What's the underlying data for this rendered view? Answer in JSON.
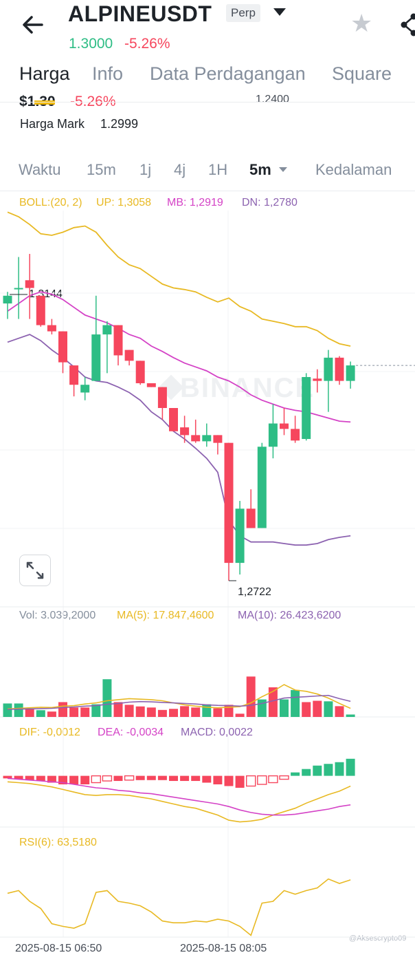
{
  "header": {
    "symbol": "ALPINEUSDT",
    "badge": "Perp",
    "last_price": "1.3000",
    "change_pct": "-5.26%",
    "tabs": [
      "Harga",
      "Info",
      "Data Perdagangan",
      "Square"
    ],
    "active_tab": "Harga"
  },
  "summary": {
    "price_partial": "$1.30",
    "change_partial": "-5.26%",
    "right_partial": "1.2400",
    "mark_label": "Harga Mark",
    "mark_value": "1.2999"
  },
  "intervals": [
    "Waktu",
    "15m",
    "1j",
    "4j",
    "1H",
    "5m",
    "Kedalaman"
  ],
  "active_interval": "5m",
  "indicators": {
    "boll": {
      "name": "BOLL:(20, 2)",
      "up": "UP: 1,3058",
      "mb": "MB: 1,2919",
      "dn": "DN: 1,2780"
    },
    "vol": {
      "vol": "Vol: 3.039,2000",
      "ma5": "MA(5): 17.847,4600",
      "ma10": "MA(10): 26.423,6200"
    },
    "macd": {
      "dif": "DIF: -0,0012",
      "dea": "DEA: -0,0034",
      "macd": "MACD: 0,0022"
    },
    "rsi": {
      "label": "RSI(6): 63,5180"
    }
  },
  "annotations": {
    "high": "1,3144",
    "low": "1,2722"
  },
  "time_labels": [
    "2025-08-15 06:50",
    "2025-08-15 08:05"
  ],
  "watermark": "BINANCE",
  "credit": "@Aksescrypto09",
  "colors": {
    "up": "#2ebd85",
    "down": "#f6465d",
    "boll_up": "#e8b923",
    "boll_mb": "#d442c6",
    "boll_dn": "#8c62b0",
    "ma5": "#e8b923",
    "ma10": "#8c62b0"
  },
  "icons": [
    "back-arrow-icon",
    "dropdown-caret-icon",
    "star-icon",
    "share-icon",
    "expand-icon"
  ],
  "chart_data": {
    "type": "candlestick",
    "price_range": [
      1.269,
      1.32
    ],
    "candles": [
      {
        "o": 1.308,
        "h": 1.3095,
        "l": 1.306,
        "c": 1.309
      },
      {
        "o": 1.31,
        "h": 1.314,
        "l": 1.306,
        "c": 1.31
      },
      {
        "o": 1.311,
        "h": 1.3144,
        "l": 1.306,
        "c": 1.31
      },
      {
        "o": 1.309,
        "h": 1.309,
        "l": 1.305,
        "c": 1.3052
      },
      {
        "o": 1.3052,
        "h": 1.306,
        "l": 1.304,
        "c": 1.3044
      },
      {
        "o": 1.3044,
        "h": 1.3044,
        "l": 1.299,
        "c": 1.3004
      },
      {
        "o": 1.3,
        "h": 1.3,
        "l": 1.296,
        "c": 1.2975
      },
      {
        "o": 1.2965,
        "h": 1.2985,
        "l": 1.2955,
        "c": 1.2975
      },
      {
        "o": 1.298,
        "h": 1.309,
        "l": 1.298,
        "c": 1.304
      },
      {
        "o": 1.304,
        "h": 1.3057,
        "l": 1.299,
        "c": 1.3052
      },
      {
        "o": 1.3052,
        "h": 1.3052,
        "l": 1.3,
        "c": 1.3013
      },
      {
        "o": 1.302,
        "h": 1.302,
        "l": 1.3,
        "c": 1.3006
      },
      {
        "o": 1.3006,
        "h": 1.3006,
        "l": 1.2975,
        "c": 1.2977
      },
      {
        "o": 1.2977,
        "h": 1.2977,
        "l": 1.2972,
        "c": 1.2972
      },
      {
        "o": 1.2972,
        "h": 1.2972,
        "l": 1.293,
        "c": 1.2945
      },
      {
        "o": 1.2945,
        "h": 1.2945,
        "l": 1.2915,
        "c": 1.2915
      },
      {
        "o": 1.292,
        "h": 1.2935,
        "l": 1.29,
        "c": 1.291
      },
      {
        "o": 1.291,
        "h": 1.293,
        "l": 1.29,
        "c": 1.2902
      },
      {
        "o": 1.2902,
        "h": 1.2925,
        "l": 1.2895,
        "c": 1.291
      },
      {
        "o": 1.291,
        "h": 1.291,
        "l": 1.2885,
        "c": 1.29
      },
      {
        "o": 1.29,
        "h": 1.29,
        "l": 1.2722,
        "c": 1.2745
      },
      {
        "o": 1.2745,
        "h": 1.2825,
        "l": 1.273,
        "c": 1.2815
      },
      {
        "o": 1.2815,
        "h": 1.284,
        "l": 1.279,
        "c": 1.279
      },
      {
        "o": 1.279,
        "h": 1.29,
        "l": 1.279,
        "c": 1.2895
      },
      {
        "o": 1.2895,
        "h": 1.295,
        "l": 1.288,
        "c": 1.2925
      },
      {
        "o": 1.2925,
        "h": 1.2945,
        "l": 1.291,
        "c": 1.2918
      },
      {
        "o": 1.2918,
        "h": 1.2935,
        "l": 1.29,
        "c": 1.2903
      },
      {
        "o": 1.2905,
        "h": 1.299,
        "l": 1.2903,
        "c": 1.2985
      },
      {
        "o": 1.2983,
        "h": 1.2995,
        "l": 1.2965,
        "c": 1.298
      },
      {
        "o": 1.298,
        "h": 1.302,
        "l": 1.294,
        "c": 1.301
      },
      {
        "o": 1.301,
        "h": 1.3012,
        "l": 1.2975,
        "c": 1.298
      },
      {
        "o": 1.298,
        "h": 1.3005,
        "l": 1.297,
        "c": 1.3
      }
    ],
    "boll_up": [
      1.3198,
      1.3192,
      1.3182,
      1.317,
      1.3168,
      1.3172,
      1.3178,
      1.318,
      1.3172,
      1.3155,
      1.314,
      1.313,
      1.3125,
      1.3115,
      1.3105,
      1.31,
      1.3098,
      1.3095,
      1.3088,
      1.3082,
      1.3087,
      1.3076,
      1.307,
      1.306,
      1.3057,
      1.3054,
      1.305,
      1.305,
      1.3045,
      1.3035,
      1.3028,
      1.3025
    ],
    "boll_mb": [
      1.307,
      1.308,
      1.309,
      1.3095,
      1.3092,
      1.3085,
      1.3075,
      1.3065,
      1.306,
      1.3055,
      1.3048,
      1.304,
      1.3035,
      1.3025,
      1.3018,
      1.301,
      1.3003,
      1.2998,
      1.2993,
      1.2985,
      1.298,
      1.2972,
      1.2962,
      1.2955,
      1.295,
      1.2945,
      1.2942,
      1.294,
      1.2936,
      1.2932,
      1.2928,
      1.2927
    ],
    "boll_dn": [
      1.303,
      1.3035,
      1.304,
      1.3032,
      1.302,
      1.301,
      1.2998,
      1.2985,
      1.298,
      1.2978,
      1.2972,
      1.2965,
      1.2955,
      1.294,
      1.293,
      1.2915,
      1.2905,
      1.2893,
      1.288,
      1.2862,
      1.28,
      1.278,
      1.2772,
      1.2772,
      1.2772,
      1.277,
      1.2768,
      1.2768,
      1.277,
      1.2775,
      1.2778,
      1.278
    ],
    "volume": {
      "range": [
        0,
        35000
      ],
      "values": [
        5000,
        5000,
        3000,
        2500,
        2000,
        5500,
        3500,
        3500,
        4700,
        14000,
        5500,
        4500,
        3900,
        3500,
        2600,
        3000,
        4000,
        3500,
        4700,
        3200,
        4500,
        1200,
        15000,
        6500,
        11000,
        6500,
        10000,
        5500,
        6000,
        5800,
        4000,
        900
      ],
      "up": [
        true,
        true,
        false,
        true,
        false,
        false,
        false,
        false,
        true,
        true,
        false,
        false,
        false,
        false,
        false,
        false,
        false,
        false,
        true,
        false,
        false,
        false,
        false,
        true,
        false,
        true,
        true,
        false,
        false,
        true,
        false,
        true
      ],
      "ma5": [
        3000,
        3200,
        3400,
        3600,
        3500,
        4000,
        4200,
        4800,
        5200,
        6000,
        6400,
        6800,
        6600,
        6400,
        6000,
        5200,
        4500,
        4000,
        3600,
        3400,
        3600,
        3800,
        5200,
        7500,
        9500,
        12000,
        10000,
        9500,
        8500,
        7000,
        5000,
        3200
      ],
      "ma10": [
        2800,
        2900,
        3000,
        3100,
        3200,
        3500,
        3700,
        4000,
        4200,
        4700,
        5000,
        5500,
        5700,
        5600,
        5400,
        5200,
        5000,
        4800,
        4500,
        4300,
        4200,
        4000,
        4300,
        5000,
        6000,
        7000,
        7300,
        7500,
        7800,
        8000,
        6800,
        5800
      ]
    },
    "macd": {
      "range": [
        -0.006,
        0.004
      ],
      "hist": [
        -0.0003,
        -0.0004,
        -0.0005,
        -0.0006,
        -0.0008,
        -0.001,
        -0.001,
        -0.001,
        -0.0008,
        -0.0006,
        -0.0006,
        -0.0005,
        -0.0005,
        -0.0005,
        -0.0005,
        -0.0006,
        -0.0006,
        -0.0006,
        -0.0008,
        -0.001,
        -0.0012,
        -0.0014,
        -0.0012,
        -0.001,
        -0.0008,
        -0.0004,
        0.0004,
        0.0008,
        0.0012,
        0.0014,
        0.0016,
        0.002
      ],
      "dif": [
        -0.0007,
        -0.0008,
        -0.0009,
        -0.0011,
        -0.0013,
        -0.0016,
        -0.0019,
        -0.0022,
        -0.0023,
        -0.0022,
        -0.0022,
        -0.0023,
        -0.0025,
        -0.0027,
        -0.003,
        -0.0033,
        -0.0036,
        -0.0038,
        -0.0042,
        -0.0046,
        -0.0052,
        -0.0054,
        -0.0053,
        -0.0051,
        -0.0046,
        -0.0042,
        -0.0038,
        -0.0032,
        -0.0027,
        -0.0022,
        -0.0018,
        -0.0012
      ],
      "dea": [
        -0.0003,
        -0.0004,
        -0.0005,
        -0.0006,
        -0.0007,
        -0.0008,
        -0.001,
        -0.0012,
        -0.0014,
        -0.0015,
        -0.0017,
        -0.0018,
        -0.002,
        -0.0021,
        -0.0023,
        -0.0025,
        -0.0027,
        -0.0029,
        -0.0031,
        -0.0033,
        -0.0036,
        -0.004,
        -0.0043,
        -0.0045,
        -0.0046,
        -0.0046,
        -0.0045,
        -0.0043,
        -0.0041,
        -0.0039,
        -0.0036,
        -0.0034
      ]
    },
    "rsi": {
      "range": [
        0,
        100
      ],
      "values": [
        49,
        52,
        40,
        32,
        15,
        12,
        10,
        15,
        50,
        52,
        40,
        38,
        35,
        28,
        18,
        16,
        16,
        18,
        17,
        20,
        18,
        12,
        2,
        38,
        40,
        52,
        48,
        52,
        55,
        65,
        60,
        64
      ]
    }
  }
}
